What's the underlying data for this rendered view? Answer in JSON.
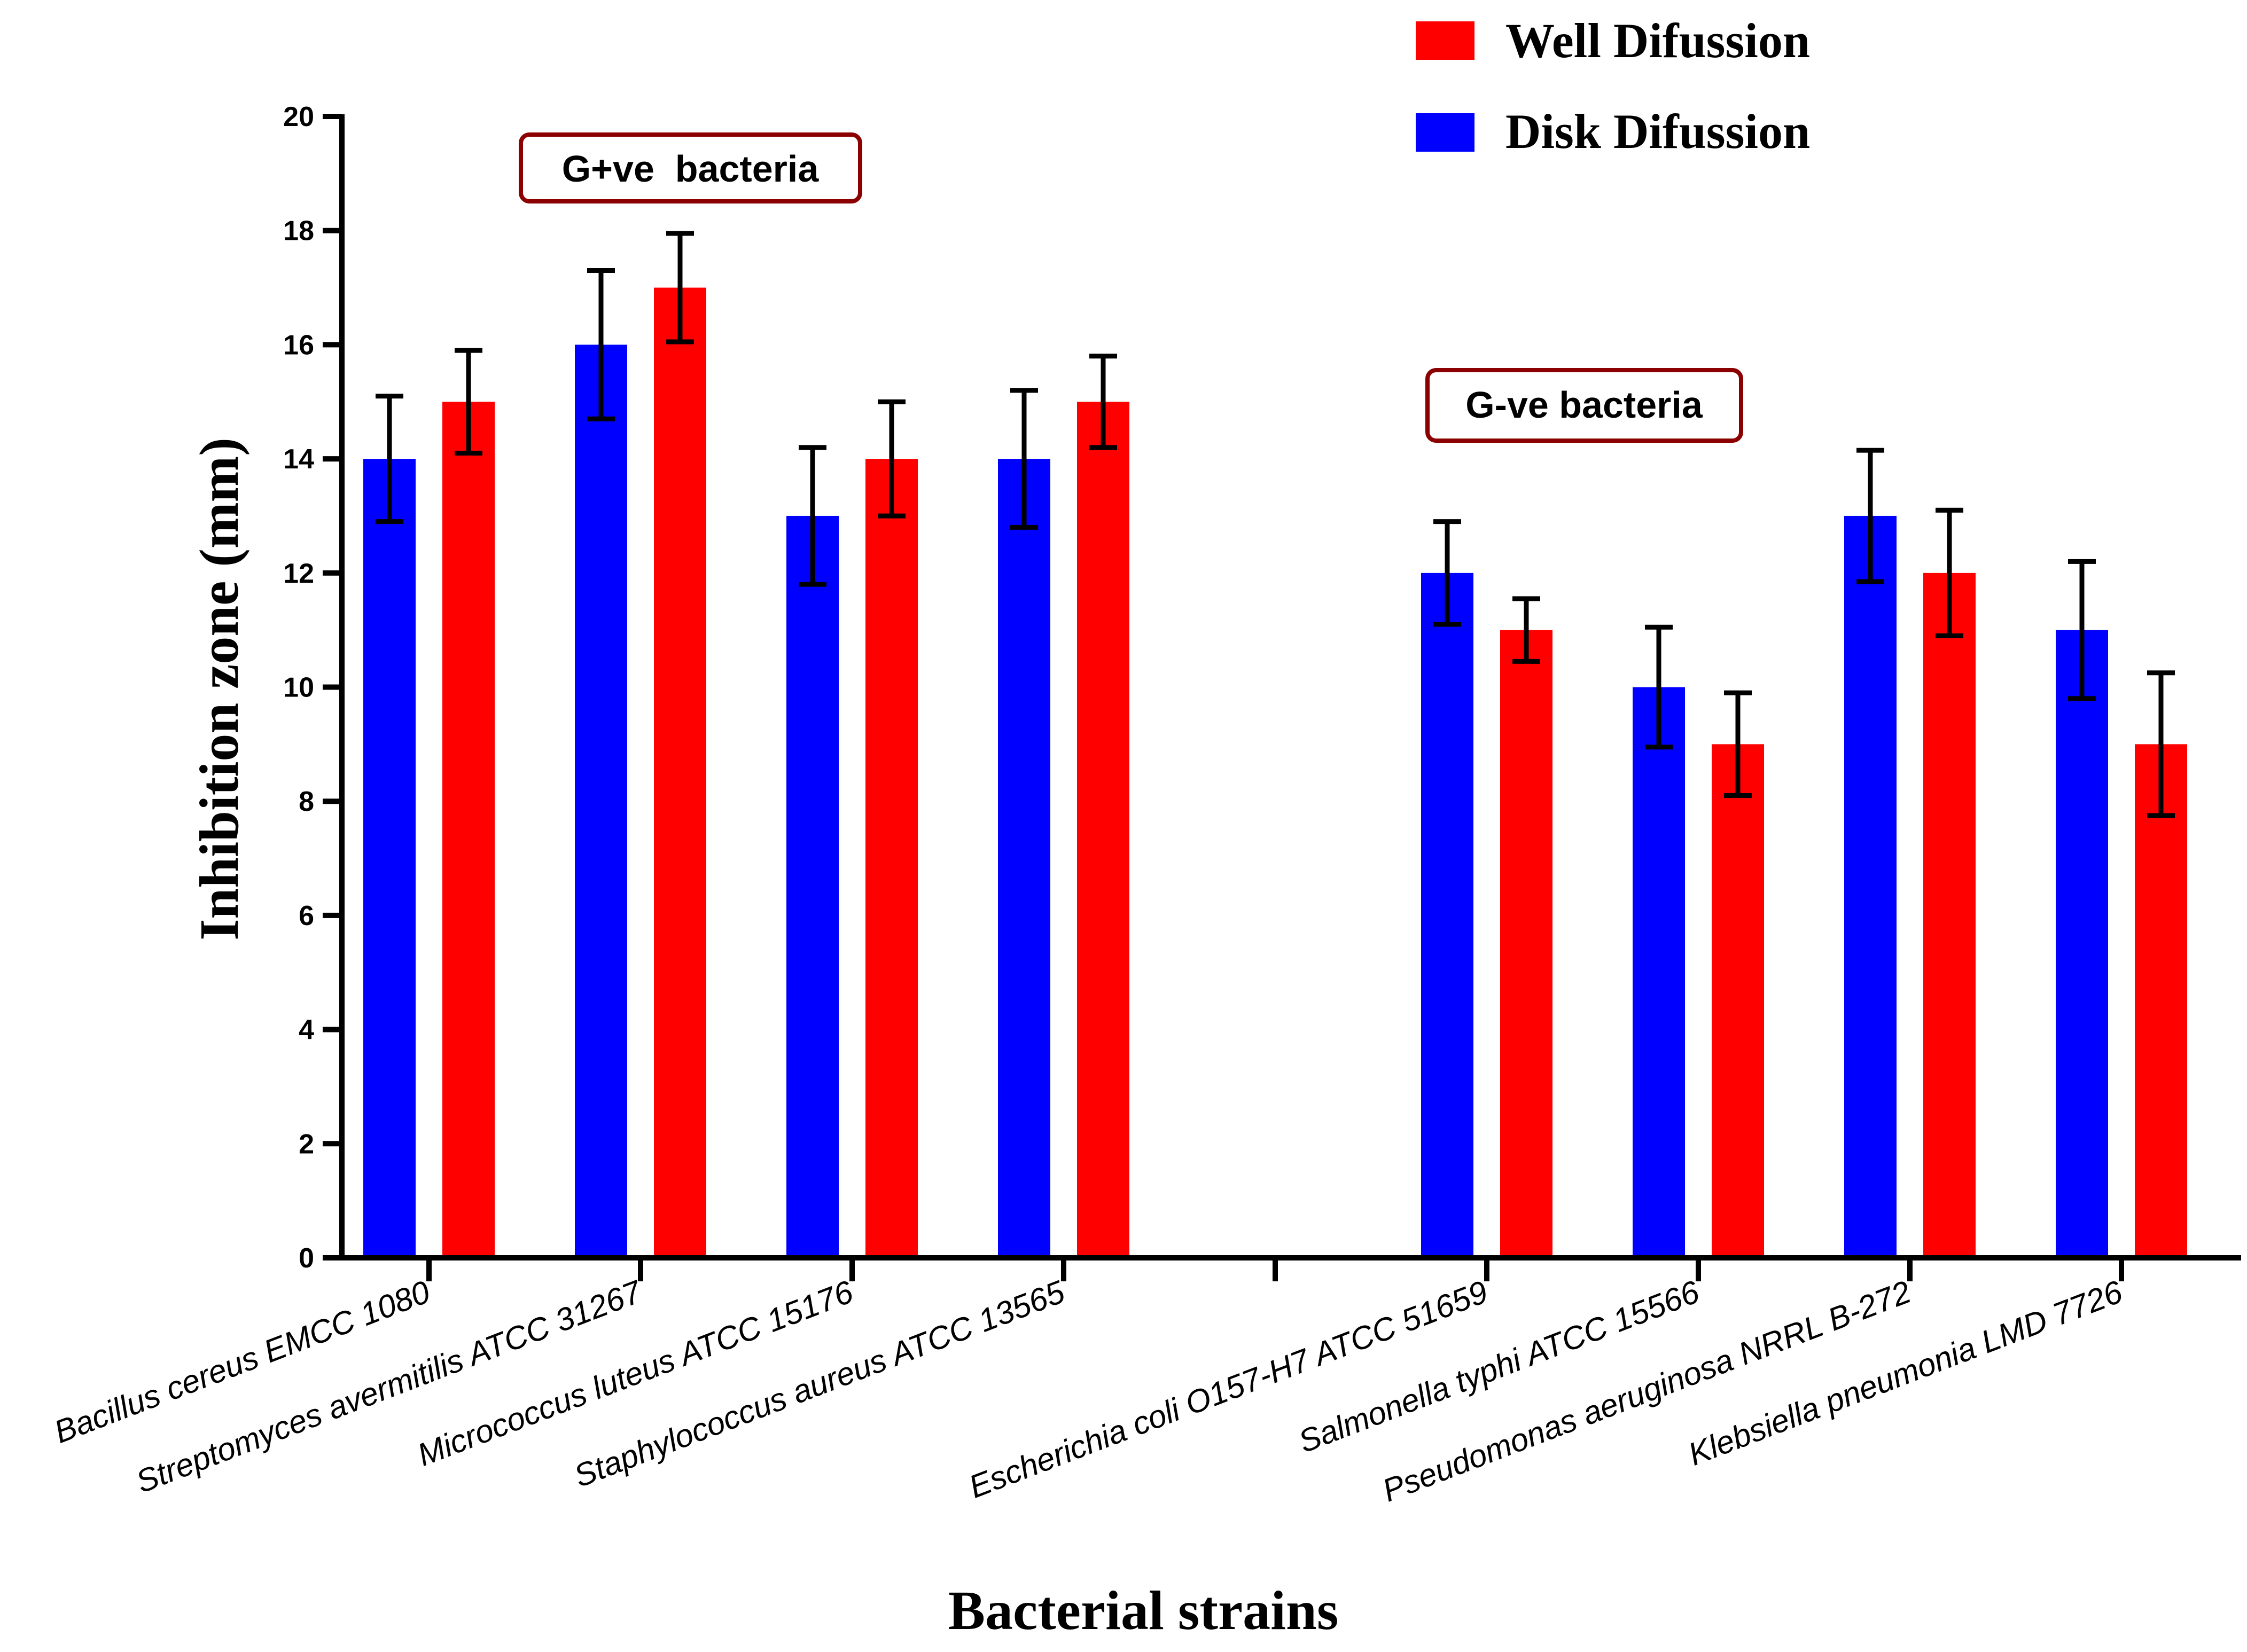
{
  "chart_data": {
    "type": "bar",
    "xlabel": "Bacterial strains",
    "ylabel": "Inhibition zone (mm)",
    "ylim": [
      0,
      20
    ],
    "yticks": [
      "0",
      "2",
      "4",
      "6",
      "8",
      "10",
      "12",
      "14",
      "16",
      "18",
      "20"
    ],
    "categories": [
      "Bacillus cereus EMCC 1080",
      "Streptomyces avermitilis ATCC 31267",
      "Micrococcus luteus ATCC 15176",
      "Staphylococcus aureus ATCC 13565",
      "",
      "Escherichia coli O157-H7 ATCC 51659",
      "Salmonella typhi ATCC 15566",
      "Pseudomonas aeruginosa NRRL B-272",
      "Klebsiella pneumonia LMD 7726"
    ],
    "series": [
      {
        "name": "Disk Difussion",
        "color": "#0000ff",
        "values": [
          14,
          16,
          13,
          14,
          null,
          12,
          10,
          13,
          11
        ],
        "errors": [
          1.1,
          1.3,
          1.2,
          1.2,
          null,
          0.9,
          1.05,
          1.15,
          1.2
        ]
      },
      {
        "name": "Well Difussion",
        "color": "#ff0000",
        "values": [
          15,
          17,
          14,
          15,
          null,
          11,
          9,
          12,
          9
        ],
        "errors": [
          0.9,
          0.95,
          1.0,
          0.8,
          null,
          0.55,
          0.9,
          1.1,
          1.25
        ]
      }
    ],
    "legend": [
      {
        "label": "Well Difussion",
        "color": "#ff0000"
      },
      {
        "label": "Disk Difussion",
        "color": "#0000ff"
      }
    ],
    "group_labels": [
      {
        "text": "G+ve  bacteria",
        "border_color": "#8b0000"
      },
      {
        "text": "G-ve bacteria",
        "border_color": "#8b0000"
      }
    ]
  }
}
